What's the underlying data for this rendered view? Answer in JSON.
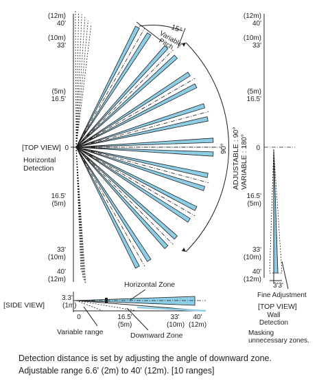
{
  "top_view": {
    "tick_labels": {
      "top_12m": "(12m)",
      "top_40": "40'",
      "top_10m": "(10m)",
      "top_33": "33'",
      "top_5m": "(5m)",
      "top_16": "16.5'",
      "zero": "0",
      "bot_16": "16.5'",
      "bot_5m": "(5m)",
      "bot_33": "33'",
      "bot_10m": "(10m)",
      "bot_40": "40'",
      "bot_12m": "(12m)"
    },
    "view_label": "[TOP VIEW]",
    "detection_label_line1": "Horizontal",
    "detection_label_line2": "Detection",
    "pitch_angle": "15°",
    "pitch_label_line1": "Variable",
    "pitch_label_line2": "Pitch",
    "spread_angle": "90°",
    "adjustable_label": "ADJUSTABLE : 90°",
    "variable_label": "VARIABLE : 180°"
  },
  "wall_view": {
    "tick_labels": {
      "top_12m": "(12m)",
      "top_40": "40'",
      "top_10m": "(10m)",
      "top_33": "33'",
      "top_5m": "(5m)",
      "top_16": "16.5'",
      "zero": "0",
      "bot_16": "16.5'",
      "bot_5m": "(5m)",
      "bot_33": "33'",
      "bot_10m": "(10m)",
      "bot_40": "40'",
      "bot_12m": "(12m)"
    },
    "spacing_label": "3'3'",
    "fine_adjustment": "Fine Adjustment",
    "view_label": "[TOP VIEW]",
    "wall_line1": "Wall",
    "wall_line2": "Detection",
    "masking_line1": "Masking",
    "masking_line2": "unnecessary zones."
  },
  "side_view": {
    "view_label": "[SIDE VIEW]",
    "height_ft": "3.3'",
    "height_m": "(1m)",
    "horizontal_zone": "Horizontal Zone",
    "downward_zone": "Downward Zone",
    "variable_range": "Variable range",
    "ticks": {
      "zero": "0",
      "t16": "16.5'",
      "t16m": "(5m)",
      "t33": "33'",
      "t33m": "(10m)",
      "t40": "40'",
      "t40m": "(12m)"
    }
  },
  "caption": {
    "line1": "Detection distance is set by adjusting the angle of downward zone.",
    "line2": "Adjustable range 6.6' (2m) to 40' (12m). [10 ranges]"
  },
  "colors": {
    "zone_fill": "#8ecde6",
    "ink": "#1e1e1e"
  }
}
